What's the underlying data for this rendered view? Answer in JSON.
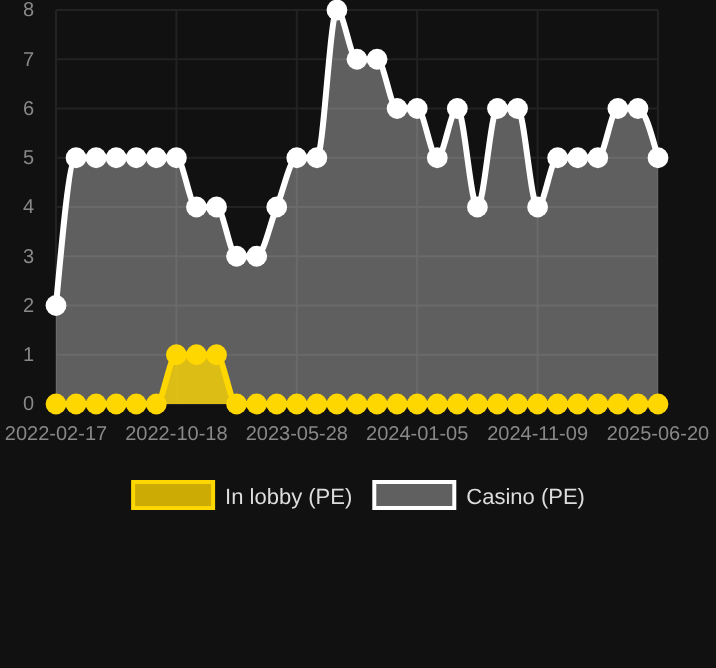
{
  "chart_data": {
    "type": "area",
    "categories": [
      "2022-02-17",
      null,
      null,
      null,
      null,
      null,
      "2022-10-18",
      null,
      null,
      null,
      null,
      null,
      "2023-05-28",
      null,
      null,
      null,
      null,
      null,
      "2024-01-05",
      null,
      null,
      null,
      null,
      null,
      "2024-11-09",
      null,
      null,
      null,
      null,
      null,
      "2025-06-20"
    ],
    "series": [
      {
        "name": "Casino (PE)",
        "color": "#ffffff",
        "values": [
          2,
          5,
          5,
          5,
          5,
          5,
          5,
          4,
          4,
          3,
          3,
          4,
          5,
          5,
          8,
          7,
          7,
          6,
          6,
          5,
          6,
          4,
          6,
          6,
          4,
          5,
          5,
          5,
          6,
          6,
          5
        ]
      },
      {
        "name": "In lobby (PE)",
        "color": "#ffd700",
        "values": [
          0,
          0,
          0,
          0,
          0,
          0,
          1,
          1,
          1,
          0,
          0,
          0,
          0,
          0,
          0,
          0,
          0,
          0,
          0,
          0,
          0,
          0,
          0,
          0,
          0,
          0,
          0,
          0,
          0,
          0,
          0
        ]
      }
    ],
    "ylim": [
      0,
      8
    ],
    "yticks": [
      0,
      1,
      2,
      3,
      4,
      5,
      6,
      7,
      8
    ],
    "grid": true,
    "legend": "bottom",
    "marker": "circle",
    "line_style": "solid"
  }
}
